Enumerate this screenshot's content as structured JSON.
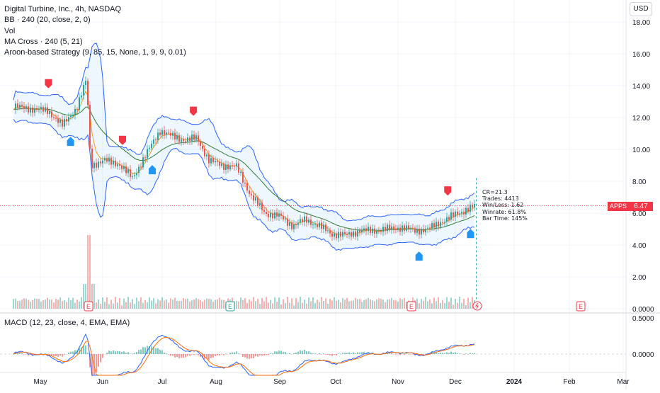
{
  "header": {
    "title": "Digital Turbine, Inc., 4h, NASDAQ",
    "indicators": [
      "BB · 240 (20, close, 2, 0)",
      "Vol",
      "MA Cross · 240 (5, 21)",
      "Aroon-based Strategy (9, 85, 15, None, 1, 9, 9, 0.01)"
    ],
    "currency_button": "USD"
  },
  "macd": {
    "legend": "MACD (12, 23, close, 4, EMA, EMA)",
    "axis_labels": [
      "0.5000",
      "0.0000"
    ],
    "axis_values": [
      0.5,
      0.0
    ]
  },
  "last_price": {
    "symbol": "APPS",
    "value": "6.47"
  },
  "strategy_stats": [
    "CR=21.3",
    "Trades: 4413",
    "Win/Loss: 1.62",
    "Winrate: 61.8%",
    "Bar Time: 145%"
  ],
  "events": [
    "E",
    "E",
    "E",
    "E",
    "E"
  ],
  "colors": {
    "up": "#26a69a",
    "down": "#ef5350",
    "band": "#2962ff",
    "ma_fast": "#f7931a",
    "ma_slow": "#2e7d32",
    "macd": "#2962ff",
    "signal": "#ff6d00",
    "buy": "#2196f3",
    "sell": "#f23645"
  },
  "chart_data": {
    "type": "line",
    "title": "Digital Turbine, Inc., 4h, NASDAQ",
    "xlabel": "",
    "ylabel": "",
    "x_tick_labels": [
      "May",
      "Jun",
      "Jul",
      "Aug",
      "Sep",
      "Oct",
      "Nov",
      "Dec",
      "2024",
      "Feb",
      "Mar"
    ],
    "y_tick_labels": [
      "18.00",
      "16.00",
      "14.00",
      "12.00",
      "10.00",
      "8.00",
      "6.00",
      "4.00",
      "2.00",
      "0.0000"
    ],
    "ylim": [
      0,
      18.5
    ],
    "grid": true,
    "series": [
      {
        "x": [
          "2023-04-27",
          "2023-05-05",
          "2023-05-12",
          "2023-05-19",
          "2023-05-24",
          "2023-05-26",
          "2023-06-02",
          "2023-06-09",
          "2023-06-16",
          "2023-06-22",
          "2023-06-30",
          "2023-07-07",
          "2023-07-14",
          "2023-07-21",
          "2023-07-28",
          "2023-08-04",
          "2023-08-11",
          "2023-08-18",
          "2023-08-25",
          "2023-09-01",
          "2023-09-08",
          "2023-09-15",
          "2023-09-22",
          "2023-09-29",
          "2023-10-06",
          "2023-10-13",
          "2023-10-20",
          "2023-10-27",
          "2023-11-03",
          "2023-11-10",
          "2023-11-17",
          "2023-11-24",
          "2023-12-01",
          "2023-12-08",
          "2023-12-12"
        ],
        "values": [
          12.7,
          12.4,
          11.5,
          12.6,
          14.4,
          9.0,
          9.3,
          9.1,
          8.2,
          9.5,
          11.2,
          10.8,
          10.6,
          10.7,
          9.3,
          9.0,
          8.9,
          7.1,
          6.0,
          5.8,
          5.2,
          5.6,
          5.2,
          4.7,
          4.6,
          4.9,
          4.9,
          5.0,
          5.1,
          4.9,
          5.0,
          5.5,
          5.9,
          6.3,
          6.47
        ]
      }
    ],
    "volume_spike_date": "2023-05-25",
    "annotations": [
      "CR=21.3",
      "Trades: 4413",
      "Win/Loss: 1.62",
      "Winrate: 61.8%",
      "Bar Time: 145%"
    ],
    "last_value": 6.47
  }
}
